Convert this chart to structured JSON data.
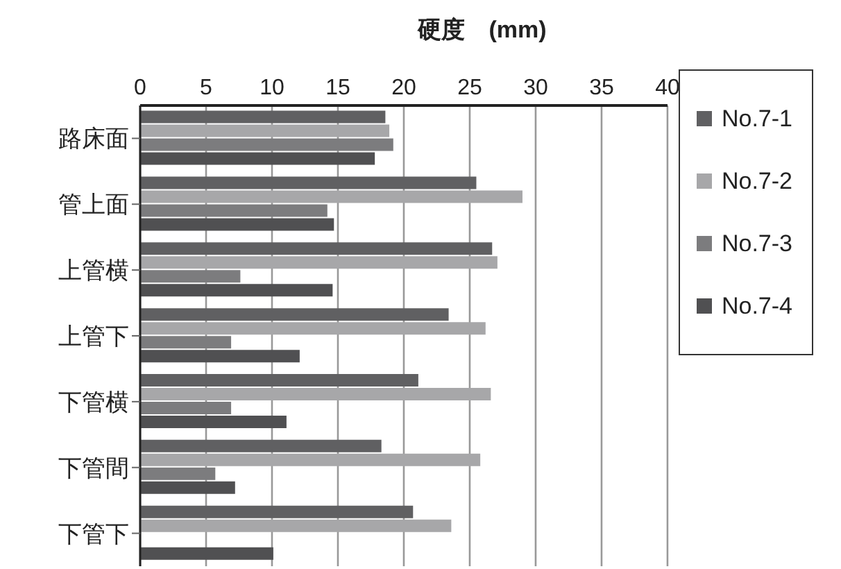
{
  "chart_data": {
    "type": "bar",
    "orientation": "horizontal",
    "title": "硬度　(mm)",
    "categories": [
      "路床面",
      "管上面",
      "上管横",
      "上管下",
      "下管横",
      "下管間",
      "下管下"
    ],
    "series": [
      {
        "name": "No.7-1",
        "color": "#606062",
        "values": [
          18.6,
          25.5,
          26.7,
          23.4,
          21.1,
          18.3,
          20.7
        ]
      },
      {
        "name": "No.7-2",
        "color": "#a7a7a9",
        "values": [
          18.9,
          29.0,
          27.1,
          26.2,
          26.6,
          25.8,
          23.6
        ]
      },
      {
        "name": "No.7-3",
        "color": "#7c7c7e",
        "values": [
          19.2,
          14.2,
          7.6,
          6.9,
          6.9,
          5.7,
          null
        ]
      },
      {
        "name": "No.7-4",
        "color": "#505052",
        "values": [
          17.8,
          14.7,
          14.6,
          12.1,
          11.1,
          7.2,
          10.1
        ]
      }
    ],
    "xlim": [
      0,
      40
    ],
    "xticks": [
      0,
      5,
      10,
      15,
      20,
      25,
      30,
      35,
      40
    ],
    "grid": "x",
    "legend": "top right"
  }
}
